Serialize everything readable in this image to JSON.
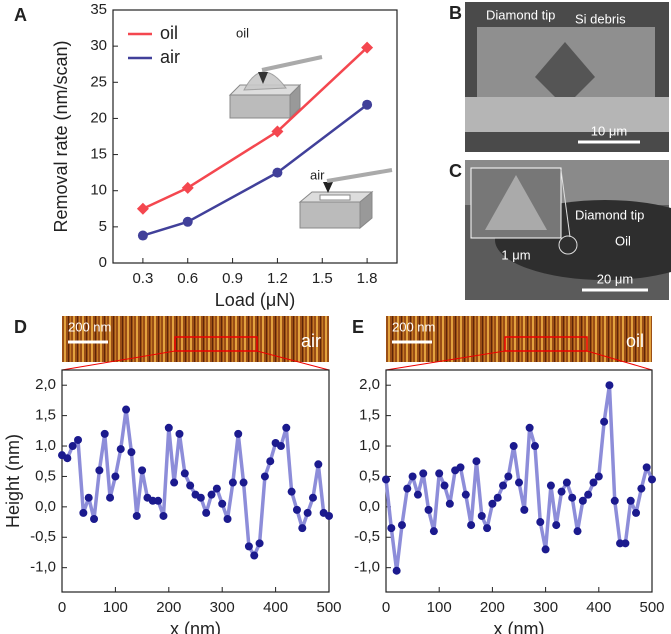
{
  "chart_data": [
    {
      "type": "line",
      "panel": "A",
      "ylabel": "Removal rate (nm/scan)",
      "xlabel": "Load (μN)",
      "x": [
        0.3,
        0.6,
        1.2,
        1.8
      ],
      "series": [
        {
          "name": "oil",
          "color": "#f4474f",
          "marker": "diamond",
          "values": [
            7.5,
            10.4,
            18.2,
            29.8
          ]
        },
        {
          "name": "air",
          "color": "#41409a",
          "marker": "circle",
          "values": [
            3.8,
            5.7,
            12.5,
            21.9
          ]
        }
      ],
      "xlim": [
        0.1,
        2.0
      ],
      "xticks": [
        0.3,
        0.6,
        0.9,
        1.2,
        1.5,
        1.8
      ],
      "ylim": [
        0,
        35
      ],
      "yticks": [
        0,
        5,
        10,
        15,
        20,
        25,
        30,
        35
      ],
      "legend": "upper left",
      "annotations": [
        "oil",
        "air"
      ]
    },
    {
      "type": "image",
      "panel": "B",
      "annotations": [
        "Diamond tip",
        "Si debris"
      ],
      "scale_bar": "10 μm"
    },
    {
      "type": "image",
      "panel": "C",
      "annotations": [
        "Diamond tip",
        "Oil",
        "1 μm"
      ],
      "scale_bar": "20 μm"
    },
    {
      "type": "line",
      "panel": "D",
      "ylabel": "Height (nm)",
      "xlabel": "x (nm)",
      "scale_bar": "200 nm",
      "image_label": "air",
      "x": [
        0,
        10,
        20,
        30,
        40,
        50,
        60,
        70,
        80,
        90,
        100,
        110,
        120,
        130,
        140,
        150,
        160,
        170,
        180,
        190,
        200,
        210,
        220,
        230,
        240,
        250,
        260,
        270,
        280,
        290,
        300,
        310,
        320,
        330,
        340,
        350,
        360,
        370,
        380,
        390,
        400,
        410,
        420,
        430,
        440,
        450,
        460,
        470,
        480,
        490,
        500
      ],
      "series": [
        {
          "color": "#8d8dd9",
          "marker_color": "#1b1a8e",
          "marker": "circle",
          "values": [
            0.85,
            0.8,
            1.0,
            1.1,
            -0.1,
            0.15,
            -0.2,
            0.6,
            1.2,
            0.15,
            0.5,
            0.95,
            1.6,
            0.9,
            -0.15,
            0.6,
            0.15,
            0.1,
            0.1,
            -0.15,
            1.3,
            0.4,
            1.2,
            0.55,
            0.35,
            0.2,
            0.15,
            -0.1,
            0.2,
            0.3,
            0.05,
            -0.2,
            0.4,
            1.2,
            0.4,
            -0.65,
            -0.8,
            -0.6,
            0.5,
            0.75,
            1.05,
            1.0,
            1.3,
            0.25,
            -0.05,
            -0.35,
            -0.1,
            0.15,
            0.7,
            -0.1,
            -0.15
          ]
        }
      ],
      "xlim": [
        0,
        500
      ],
      "xticks": [
        0,
        100,
        200,
        300,
        400,
        500
      ],
      "ylim": [
        -1.4,
        2.25
      ],
      "yticks": [
        {
          "value": -1,
          "label": "-1,0"
        },
        {
          "value": -0.5,
          "label": "-0,5"
        },
        {
          "value": 0,
          "label": "0,0"
        },
        {
          "value": 0.5,
          "label": "0,5"
        },
        {
          "value": 1,
          "label": "1,0"
        },
        {
          "value": 1.5,
          "label": "1,5"
        },
        {
          "value": 2,
          "label": "2,0"
        }
      ]
    },
    {
      "type": "line",
      "panel": "E",
      "xlabel": "x (nm)",
      "scale_bar": "200 nm",
      "image_label": "oil",
      "x": [
        0,
        10,
        20,
        30,
        40,
        50,
        60,
        70,
        80,
        90,
        100,
        110,
        120,
        130,
        140,
        150,
        160,
        170,
        180,
        190,
        200,
        210,
        220,
        230,
        240,
        250,
        260,
        270,
        280,
        290,
        300,
        310,
        320,
        330,
        340,
        350,
        360,
        370,
        380,
        390,
        400,
        410,
        420,
        430,
        440,
        450,
        460,
        470,
        480,
        490,
        500
      ],
      "series": [
        {
          "color": "#8d8dd9",
          "marker_color": "#1b1a8e",
          "marker": "circle",
          "values": [
            0.45,
            -0.35,
            -1.05,
            -0.3,
            0.3,
            0.5,
            0.2,
            0.55,
            -0.05,
            -0.4,
            0.55,
            0.35,
            0.05,
            0.6,
            0.65,
            0.2,
            -0.3,
            0.75,
            -0.15,
            -0.35,
            0.05,
            0.15,
            0.35,
            0.5,
            1.0,
            0.4,
            -0.05,
            1.3,
            1.0,
            -0.25,
            -0.7,
            0.35,
            -0.3,
            0.25,
            0.4,
            0.15,
            -0.4,
            0.1,
            0.2,
            0.4,
            0.5,
            1.4,
            2.0,
            0.1,
            -0.6,
            -0.6,
            0.1,
            -0.1,
            0.3,
            0.65,
            0.45
          ]
        }
      ],
      "xlim": [
        0,
        500
      ],
      "xticks": [
        0,
        100,
        200,
        300,
        400,
        500
      ],
      "ylim": [
        -1.4,
        2.25
      ],
      "yticks": [
        {
          "value": -1,
          "label": "-1,0"
        },
        {
          "value": -0.5,
          "label": "-0,5"
        },
        {
          "value": 0,
          "label": "0,0"
        },
        {
          "value": 0.5,
          "label": "0,5"
        },
        {
          "value": 1,
          "label": "1,0"
        },
        {
          "value": 1.5,
          "label": "1,5"
        },
        {
          "value": 2,
          "label": "2,0"
        }
      ]
    }
  ]
}
